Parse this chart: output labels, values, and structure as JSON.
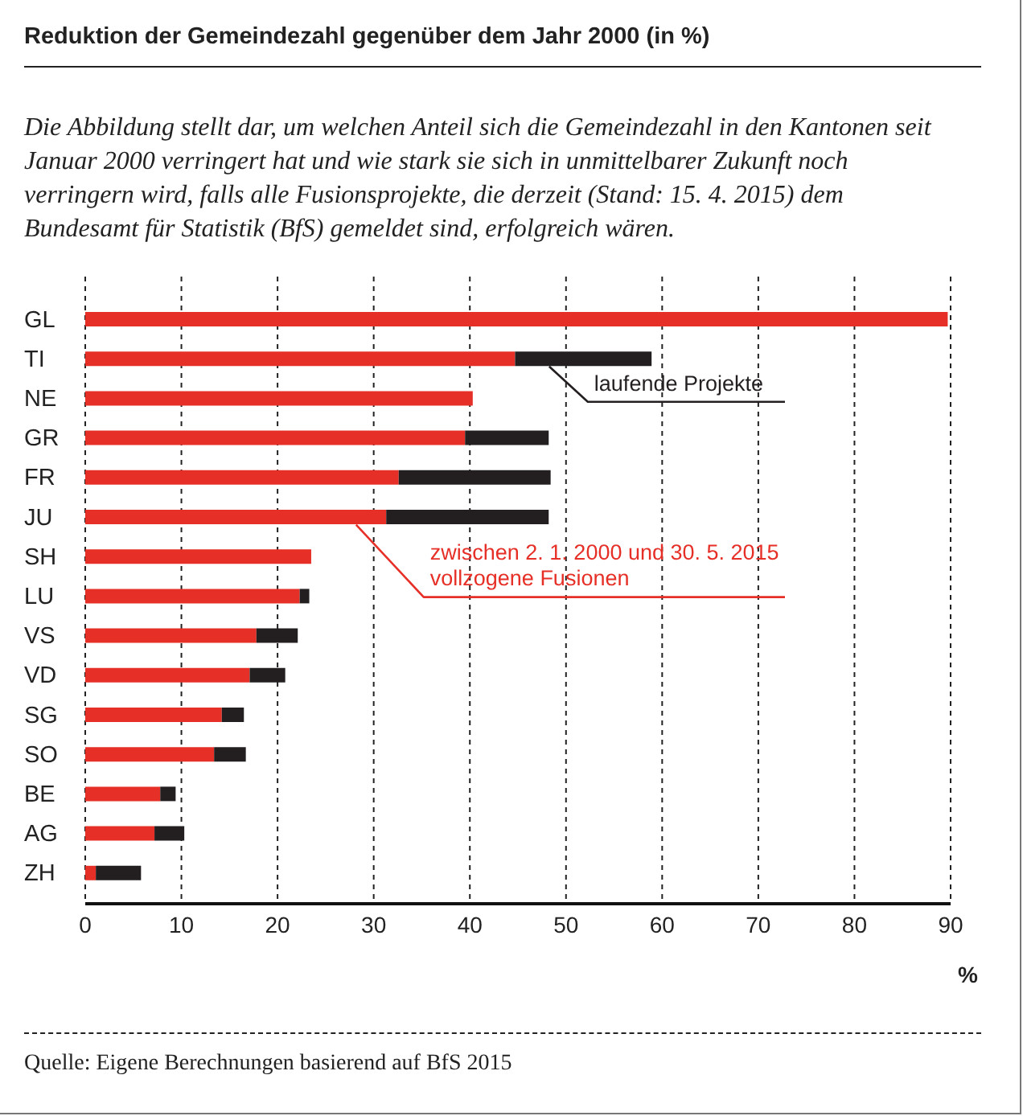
{
  "chart_data": {
    "type": "bar",
    "orientation": "horizontal",
    "stacked": true,
    "title": "Reduktion der Gemeindezahl gegenüber dem Jahr 2000 (in %)",
    "subtitle": "Die Abbildung stellt dar, um welchen Anteil sich die Gemeindezahl in den Kantonen seit Januar 2000 verringert hat und wie stark sie sich in unmittelbarer Zukunft noch verringern wird, falls alle Fusionsprojekte, die derzeit (Stand: 15. 4. 2015) dem Bundesamt für Statistik (BfS) gemeldet sind, erfolgreich wären.",
    "xlabel": "%",
    "annotations": [
      "Quelle: Eigene Berechnungen basierend auf BfS 2015"
    ],
    "categories": [
      "GL",
      "TI",
      "NE",
      "GR",
      "FR",
      "JU",
      "SH",
      "LU",
      "VS",
      "VD",
      "SG",
      "SO",
      "BE",
      "AG",
      "ZH"
    ],
    "series": [
      {
        "name": "zwischen 2. 1. 2000 und 30. 5. 2015 vollzogene Fusionen",
        "color": "#e63027",
        "values": [
          89.7,
          44.7,
          40.3,
          39.5,
          32.6,
          31.3,
          23.5,
          22.3,
          17.8,
          17.1,
          14.2,
          13.4,
          7.8,
          7.2,
          1.1
        ]
      },
      {
        "name": "laufende Projekte",
        "color": "#231f20",
        "values": [
          null,
          14.2,
          null,
          8.7,
          15.8,
          16.9,
          null,
          1.0,
          4.3,
          3.7,
          2.3,
          3.3,
          1.6,
          3.1,
          4.7
        ]
      }
    ],
    "xlim": [
      0,
      90
    ],
    "xticks": [
      0,
      10,
      20,
      30,
      40,
      50,
      60,
      70,
      80,
      90
    ],
    "grid": "x"
  }
}
